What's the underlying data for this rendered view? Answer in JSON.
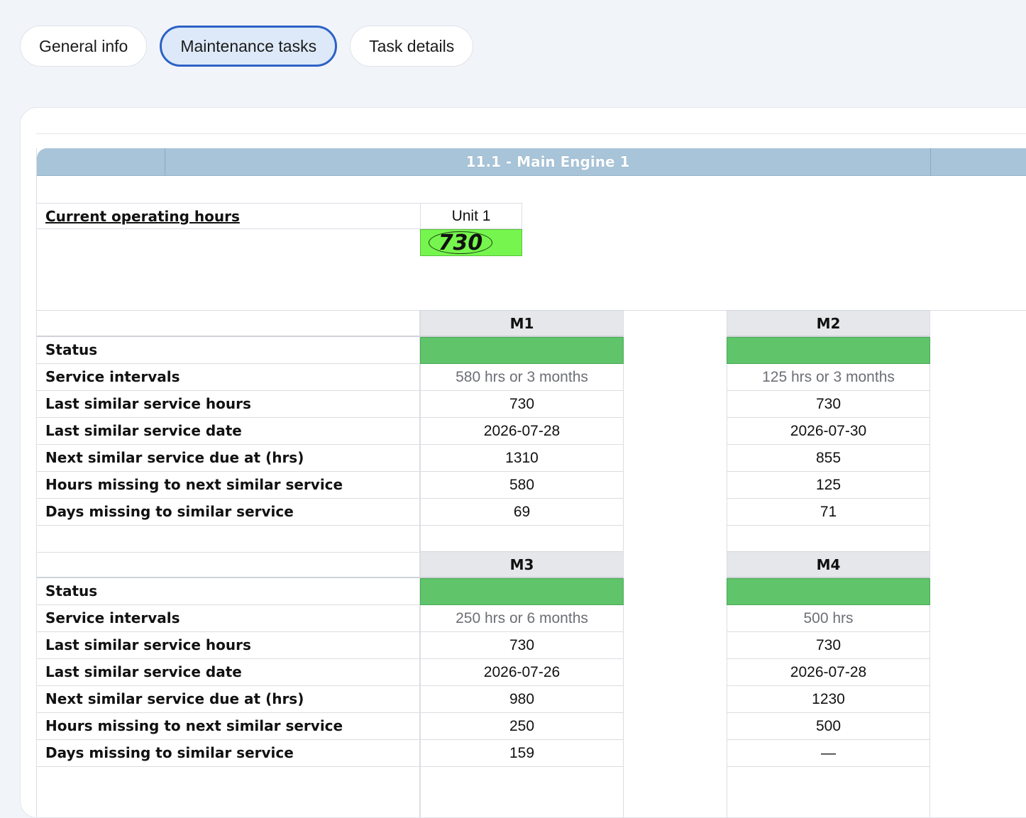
{
  "tabs": [
    {
      "label": "General info",
      "active": false
    },
    {
      "label": "Maintenance tasks",
      "active": true
    },
    {
      "label": "Task details",
      "active": false
    }
  ],
  "sheet": {
    "title": "11.1 - Main Engine 1",
    "current_hours": {
      "label": "Current operating hours",
      "unit_label": "Unit 1",
      "value": "730",
      "highlight_color": "#76f54e"
    },
    "row_labels": [
      "Status",
      "Service intervals",
      "Last similar service hours",
      "Last similar service date",
      "Next similar service due at (hrs)",
      "Hours missing to next similar service",
      "Days missing to similar service"
    ],
    "status_color": "#5fc46a",
    "blocks": [
      {
        "columns": [
          {
            "name": "M1",
            "interval": "580 hrs or 3 months",
            "last_hours": "730",
            "last_date": "2026-07-28",
            "next_due": "1310",
            "hours_missing": "580",
            "days_missing": "69"
          },
          {
            "name": "M2",
            "interval": "125 hrs or 3 months",
            "last_hours": "730",
            "last_date": "2026-07-30",
            "next_due": "855",
            "hours_missing": "125",
            "days_missing": "71"
          }
        ]
      },
      {
        "columns": [
          {
            "name": "M3",
            "interval": "250 hrs or 6 months",
            "last_hours": "730",
            "last_date": "2026-07-26",
            "next_due": "980",
            "hours_missing": "250",
            "days_missing": "159"
          },
          {
            "name": "M4",
            "interval": "500 hrs",
            "last_hours": "730",
            "last_date": "2026-07-28",
            "next_due": "1230",
            "hours_missing": "500",
            "days_missing": "—"
          }
        ]
      }
    ]
  }
}
